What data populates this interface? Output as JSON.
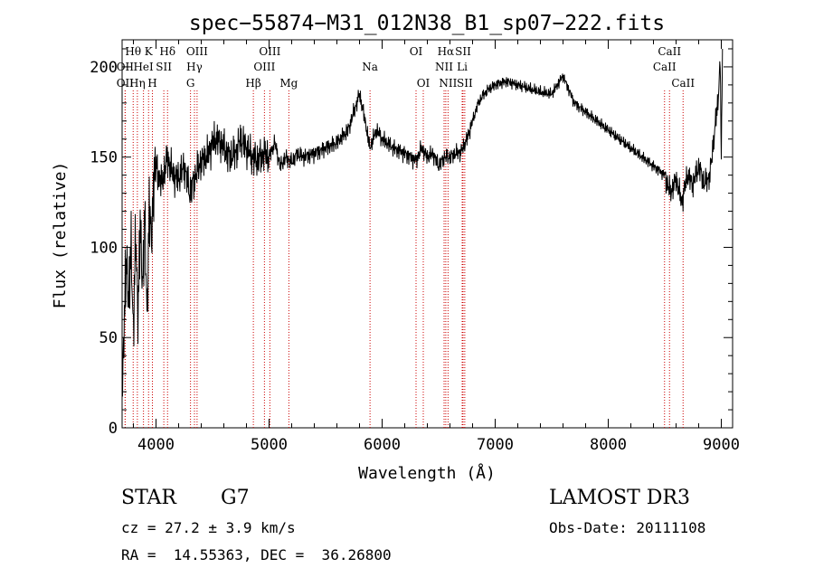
{
  "chart_data": {
    "type": "line",
    "title": "spec−55874−M31_012N38_B1_sp07−222.fits",
    "xlabel": "Wavelength (Å)",
    "ylabel": "Flux (relative)",
    "xlim": [
      3700,
      9100
    ],
    "ylim": [
      0,
      215
    ],
    "xticks": [
      4000,
      5000,
      6000,
      7000,
      8000,
      9000
    ],
    "yticks": [
      0,
      50,
      100,
      150,
      200
    ],
    "line_color": "#000000",
    "marker_color": "#cc0000",
    "grid": false,
    "spectrum": {
      "x": [
        3700,
        3720,
        3740,
        3760,
        3780,
        3800,
        3820,
        3840,
        3860,
        3880,
        3900,
        3920,
        3940,
        3960,
        3980,
        4000,
        4050,
        4100,
        4150,
        4200,
        4250,
        4300,
        4350,
        4400,
        4450,
        4500,
        4550,
        4600,
        4650,
        4700,
        4750,
        4800,
        4850,
        4900,
        4950,
        5000,
        5050,
        5100,
        5150,
        5200,
        5250,
        5300,
        5400,
        5500,
        5600,
        5700,
        5750,
        5800,
        5850,
        5890,
        5950,
        6000,
        6100,
        6200,
        6300,
        6350,
        6400,
        6450,
        6500,
        6550,
        6600,
        6650,
        6700,
        6750,
        6800,
        6850,
        6900,
        6950,
        7000,
        7100,
        7200,
        7300,
        7400,
        7500,
        7600,
        7700,
        7800,
        7900,
        8000,
        8100,
        8200,
        8300,
        8400,
        8500,
        8550,
        8600,
        8650,
        8700,
        8750,
        8800,
        8850,
        8900,
        8950,
        8970,
        8990,
        9000,
        9010
      ],
      "y": [
        20,
        60,
        95,
        70,
        100,
        55,
        105,
        65,
        110,
        80,
        118,
        60,
        125,
        100,
        140,
        145,
        135,
        150,
        140,
        138,
        145,
        130,
        140,
        148,
        150,
        158,
        160,
        155,
        150,
        152,
        160,
        155,
        150,
        148,
        152,
        150,
        158,
        145,
        150,
        147,
        152,
        150,
        152,
        155,
        158,
        165,
        175,
        185,
        170,
        155,
        165,
        160,
        155,
        152,
        148,
        155,
        150,
        152,
        145,
        150,
        150,
        152,
        153,
        160,
        170,
        180,
        185,
        188,
        190,
        192,
        190,
        188,
        186,
        185,
        195,
        180,
        175,
        170,
        165,
        160,
        155,
        150,
        145,
        140,
        130,
        138,
        125,
        140,
        135,
        145,
        135,
        140,
        170,
        180,
        205,
        150,
        210
      ]
    },
    "lines": [
      {
        "label": "Hθ",
        "x": 3798,
        "row": 0
      },
      {
        "label": "OII",
        "x": 3727,
        "row": 1
      },
      {
        "label": "OII",
        "x": 3727,
        "row": 2
      },
      {
        "label": "Hη",
        "x": 3835,
        "row": 2
      },
      {
        "label": "HeI",
        "x": 3889,
        "row": 1
      },
      {
        "label": "K",
        "x": 3934,
        "row": 0
      },
      {
        "label": "H",
        "x": 3968,
        "row": 2
      },
      {
        "label": "Hδ",
        "x": 4102,
        "row": 0
      },
      {
        "label": "SII",
        "x": 4069,
        "row": 1
      },
      {
        "label": "OIII",
        "x": 4363,
        "row": 0
      },
      {
        "label": "Hγ",
        "x": 4340,
        "row": 1
      },
      {
        "label": "G",
        "x": 4305,
        "row": 2
      },
      {
        "label": "OIII",
        "x": 5007,
        "row": 0
      },
      {
        "label": "OIII",
        "x": 4959,
        "row": 1
      },
      {
        "label": "Hβ",
        "x": 4861,
        "row": 2
      },
      {
        "label": "Mg",
        "x": 5175,
        "row": 2
      },
      {
        "label": "Na",
        "x": 5893,
        "row": 1
      },
      {
        "label": "OI",
        "x": 6300,
        "row": 0
      },
      {
        "label": "OI",
        "x": 6364,
        "row": 2
      },
      {
        "label": "Hα",
        "x": 6563,
        "row": 0
      },
      {
        "label": "SII",
        "x": 6716,
        "row": 0
      },
      {
        "label": "NII",
        "x": 6548,
        "row": 1
      },
      {
        "label": "Li",
        "x": 6708,
        "row": 1
      },
      {
        "label": "NII",
        "x": 6583,
        "row": 2
      },
      {
        "label": "SII",
        "x": 6731,
        "row": 2
      },
      {
        "label": "CaII",
        "x": 8542,
        "row": 0
      },
      {
        "label": "CaII",
        "x": 8498,
        "row": 1
      },
      {
        "label": "CaII",
        "x": 8662,
        "row": 2
      }
    ]
  },
  "info": {
    "class": "STAR",
    "subclass": "G7",
    "survey": "LAMOST DR3",
    "cz": "cz = 27.2 ± 3.9 km/s",
    "obs_date": "Obs-Date: 20111108",
    "radec": "RA =  14.55363, DEC =  36.26800"
  }
}
